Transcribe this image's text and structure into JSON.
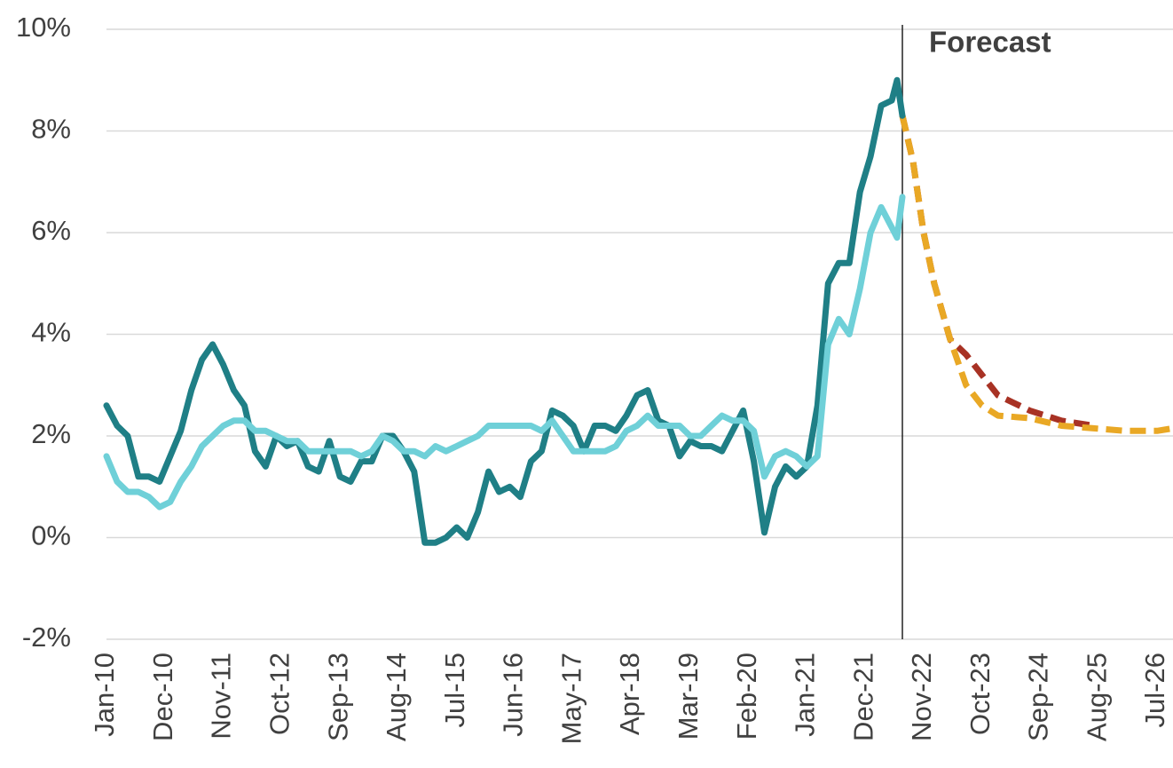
{
  "chart_data": {
    "type": "line",
    "annotation": "Forecast",
    "xlim": [
      "Jan-10",
      "Oct-26"
    ],
    "xticks": [
      "Jan-10",
      "Dec-10",
      "Nov-11",
      "Oct-12",
      "Sep-13",
      "Aug-14",
      "Jul-15",
      "Jun-16",
      "May-17",
      "Apr-18",
      "Mar-19",
      "Feb-20",
      "Jan-21",
      "Dec-21",
      "Nov-22",
      "Oct-23",
      "Sep-24",
      "Aug-25",
      "Jul-26"
    ],
    "ylim": [
      -2,
      10
    ],
    "yticks": [
      {
        "value": -2,
        "label": "-2%"
      },
      {
        "value": 0,
        "label": "0%"
      },
      {
        "value": 2,
        "label": "2%"
      },
      {
        "value": 4,
        "label": "4%"
      },
      {
        "value": 6,
        "label": "6%"
      },
      {
        "value": 8,
        "label": "8%"
      },
      {
        "value": 10,
        "label": "10%"
      }
    ],
    "grid": true,
    "series": [
      {
        "color": "#1f7f86",
        "dashed": false,
        "x": [
          "Jan-10",
          "Mar-10",
          "May-10",
          "Jul-10",
          "Sep-10",
          "Nov-10",
          "Jan-11",
          "Mar-11",
          "May-11",
          "Jul-11",
          "Sep-11",
          "Nov-11",
          "Jan-12",
          "Mar-12",
          "May-12",
          "Jul-12",
          "Sep-12",
          "Nov-12",
          "Jan-13",
          "Mar-13",
          "May-13",
          "Jul-13",
          "Sep-13",
          "Nov-13",
          "Jan-14",
          "Mar-14",
          "May-14",
          "Jul-14",
          "Sep-14",
          "Nov-14",
          "Jan-15",
          "Mar-15",
          "May-15",
          "Jul-15",
          "Sep-15",
          "Nov-15",
          "Jan-16",
          "Mar-16",
          "May-16",
          "Jul-16",
          "Sep-16",
          "Nov-16",
          "Jan-17",
          "Mar-17",
          "May-17",
          "Jul-17",
          "Sep-17",
          "Nov-17",
          "Jan-18",
          "Mar-18",
          "May-18",
          "Jul-18",
          "Sep-18",
          "Nov-18",
          "Jan-19",
          "Mar-19",
          "May-19",
          "Jul-19",
          "Sep-19",
          "Nov-19",
          "Jan-20",
          "Mar-20",
          "May-20",
          "Jul-20",
          "Sep-20",
          "Nov-20",
          "Jan-21",
          "Mar-21",
          "May-21",
          "Jul-21",
          "Sep-21",
          "Nov-21",
          "Jan-22",
          "Mar-22",
          "May-22",
          "Jun-22",
          "Jul-22"
        ],
        "values": [
          2.6,
          2.2,
          2.0,
          1.2,
          1.2,
          1.1,
          1.6,
          2.1,
          2.9,
          3.5,
          3.8,
          3.4,
          2.9,
          2.6,
          1.7,
          1.4,
          2.0,
          1.8,
          1.9,
          1.4,
          1.3,
          1.9,
          1.2,
          1.1,
          1.5,
          1.5,
          2.0,
          2.0,
          1.7,
          1.3,
          -0.1,
          -0.1,
          0.0,
          0.2,
          0.0,
          0.5,
          1.3,
          0.9,
          1.0,
          0.8,
          1.5,
          1.7,
          2.5,
          2.4,
          2.2,
          1.7,
          2.2,
          2.2,
          2.1,
          2.4,
          2.8,
          2.9,
          2.3,
          2.2,
          1.6,
          1.9,
          1.8,
          1.8,
          1.7,
          2.1,
          2.5,
          1.5,
          0.1,
          1.0,
          1.4,
          1.2,
          1.4,
          2.6,
          5.0,
          5.4,
          5.4,
          6.8,
          7.5,
          8.5,
          8.6,
          9.0,
          8.3
        ]
      },
      {
        "color": "#6fd0d8",
        "dashed": false,
        "x": [
          "Jan-10",
          "Mar-10",
          "May-10",
          "Jul-10",
          "Sep-10",
          "Nov-10",
          "Jan-11",
          "Mar-11",
          "May-11",
          "Jul-11",
          "Sep-11",
          "Nov-11",
          "Jan-12",
          "Mar-12",
          "May-12",
          "Jul-12",
          "Sep-12",
          "Nov-12",
          "Jan-13",
          "Mar-13",
          "May-13",
          "Jul-13",
          "Sep-13",
          "Nov-13",
          "Jan-14",
          "Mar-14",
          "May-14",
          "Jul-14",
          "Sep-14",
          "Nov-14",
          "Jan-15",
          "Mar-15",
          "May-15",
          "Jul-15",
          "Sep-15",
          "Nov-15",
          "Jan-16",
          "Mar-16",
          "May-16",
          "Jul-16",
          "Sep-16",
          "Nov-16",
          "Jan-17",
          "Mar-17",
          "May-17",
          "Jul-17",
          "Sep-17",
          "Nov-17",
          "Jan-18",
          "Mar-18",
          "May-18",
          "Jul-18",
          "Sep-18",
          "Nov-18",
          "Jan-19",
          "Mar-19",
          "May-19",
          "Jul-19",
          "Sep-19",
          "Nov-19",
          "Jan-20",
          "Mar-20",
          "May-20",
          "Jul-20",
          "Sep-20",
          "Nov-20",
          "Jan-21",
          "Mar-21",
          "May-21",
          "Jul-21",
          "Sep-21",
          "Nov-21",
          "Jan-22",
          "Mar-22",
          "May-22",
          "Jun-22",
          "Jul-22"
        ],
        "values": [
          1.6,
          1.1,
          0.9,
          0.9,
          0.8,
          0.6,
          0.7,
          1.1,
          1.4,
          1.8,
          2.0,
          2.2,
          2.3,
          2.3,
          2.1,
          2.1,
          2.0,
          1.9,
          1.9,
          1.7,
          1.7,
          1.7,
          1.7,
          1.7,
          1.6,
          1.7,
          2.0,
          1.9,
          1.7,
          1.7,
          1.6,
          1.8,
          1.7,
          1.8,
          1.9,
          2.0,
          2.2,
          2.2,
          2.2,
          2.2,
          2.2,
          2.1,
          2.3,
          2.0,
          1.7,
          1.7,
          1.7,
          1.7,
          1.8,
          2.1,
          2.2,
          2.4,
          2.2,
          2.2,
          2.2,
          2.0,
          2.0,
          2.2,
          2.4,
          2.3,
          2.3,
          2.1,
          1.2,
          1.6,
          1.7,
          1.6,
          1.4,
          1.6,
          3.8,
          4.3,
          4.0,
          4.9,
          6.0,
          6.5,
          6.1,
          5.9,
          6.7
        ]
      },
      {
        "color": "#a83224",
        "dashed": true,
        "x": [
          "Jul-22",
          "Sep-22",
          "Nov-22",
          "Jan-23",
          "Apr-23",
          "Jul-23",
          "Oct-23",
          "Jan-24",
          "Jul-24",
          "Jan-25",
          "Jul-25"
        ],
        "values": [
          8.3,
          7.4,
          6.0,
          5.0,
          3.9,
          3.6,
          3.2,
          2.8,
          2.5,
          2.3,
          2.2
        ]
      },
      {
        "color": "#e9a825",
        "dashed": true,
        "x": [
          "Jul-22",
          "Sep-22",
          "Nov-22",
          "Jan-23",
          "Apr-23",
          "Jul-23",
          "Oct-23",
          "Jan-24",
          "Jul-24",
          "Jan-25",
          "Jul-25",
          "Jan-26",
          "Jul-26",
          "Oct-26"
        ],
        "values": [
          8.3,
          7.4,
          6.0,
          5.0,
          3.9,
          3.0,
          2.6,
          2.4,
          2.35,
          2.2,
          2.15,
          2.1,
          2.1,
          2.15
        ]
      }
    ]
  }
}
